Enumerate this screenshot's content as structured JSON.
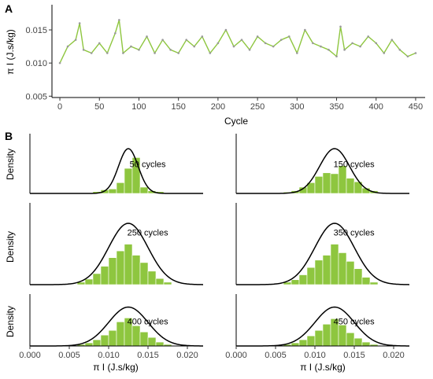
{
  "chart_data": [
    {
      "panel": "A",
      "type": "line",
      "xlabel": "Cycle",
      "ylabel": "π I (J.s/kg)",
      "xlim": [
        -10,
        462
      ],
      "ylim": [
        0.0048,
        0.0188
      ],
      "xticks": [
        0,
        50,
        100,
        150,
        200,
        250,
        300,
        350,
        400,
        450
      ],
      "yticks": [
        0.005,
        0.01,
        0.015
      ],
      "ytick_labels": [
        "0.005",
        "0.010",
        "0.015"
      ],
      "colors": {
        "line": "#8ec63f",
        "markers": "#9a9a9a"
      },
      "series": [
        {
          "x": [
            0,
            10,
            20,
            25,
            30,
            40,
            50,
            60,
            70,
            75,
            80,
            90,
            100,
            110,
            120,
            130,
            140,
            150,
            160,
            170,
            180,
            190,
            200,
            210,
            220,
            230,
            240,
            250,
            260,
            270,
            280,
            290,
            300,
            310,
            320,
            330,
            340,
            350,
            355,
            360,
            370,
            380,
            390,
            400,
            410,
            420,
            430,
            440,
            450
          ],
          "y": [
            0.01,
            0.0125,
            0.0135,
            0.016,
            0.012,
            0.0115,
            0.013,
            0.0115,
            0.0145,
            0.0165,
            0.0115,
            0.0125,
            0.012,
            0.014,
            0.0115,
            0.0135,
            0.012,
            0.0115,
            0.0135,
            0.0125,
            0.014,
            0.0115,
            0.013,
            0.015,
            0.0125,
            0.0135,
            0.012,
            0.014,
            0.013,
            0.0125,
            0.0135,
            0.014,
            0.0115,
            0.015,
            0.013,
            0.0125,
            0.012,
            0.011,
            0.0155,
            0.012,
            0.013,
            0.0125,
            0.014,
            0.013,
            0.0115,
            0.0135,
            0.012,
            0.011,
            0.0115
          ]
        }
      ]
    },
    {
      "panel": "B",
      "type": "bar",
      "ylabel": "Density",
      "xlabel": "π I (J.s/kg)",
      "xlim": [
        0,
        0.022
      ],
      "xticks": [
        0.0,
        0.005,
        0.01,
        0.015,
        0.02
      ],
      "xtick_labels": [
        "0.000",
        "0.005",
        "0.010",
        "0.015",
        "0.020"
      ],
      "bin_width": 0.001,
      "colors": {
        "bars": "#8ec63f",
        "bar_edge": "#ffffff",
        "curve": "#000000",
        "background_bars": "#cfcfcf"
      },
      "subplots": [
        {
          "label": "50 cycles",
          "normal_curve": {
            "mean": 0.0125,
            "sd": 0.00125
          },
          "bin_starts": [
            0.008,
            0.009,
            0.01,
            0.011,
            0.012,
            0.013,
            0.014,
            0.015,
            0.016
          ],
          "values": [
            0.04,
            0.08,
            0.1,
            0.24,
            0.56,
            0.8,
            0.14,
            0.06,
            0.04
          ]
        },
        {
          "label": "150 cycles",
          "normal_curve": {
            "mean": 0.0125,
            "sd": 0.0019
          },
          "bin_starts": [
            0.006,
            0.007,
            0.008,
            0.009,
            0.01,
            0.011,
            0.012,
            0.013,
            0.014,
            0.015,
            0.016,
            0.017
          ],
          "values": [
            0.03,
            0.06,
            0.14,
            0.24,
            0.38,
            0.46,
            0.44,
            0.62,
            0.34,
            0.26,
            0.12,
            0.06
          ]
        },
        {
          "label": "250 cycles",
          "normal_curve": {
            "mean": 0.0125,
            "sd": 0.0025
          },
          "bin_starts": [
            0.006,
            0.007,
            0.008,
            0.009,
            0.01,
            0.011,
            0.012,
            0.013,
            0.014,
            0.015,
            0.016,
            0.017
          ],
          "values": [
            0.04,
            0.09,
            0.18,
            0.3,
            0.44,
            0.55,
            0.66,
            0.48,
            0.36,
            0.22,
            0.1,
            0.04
          ]
        },
        {
          "label": "350 cycles",
          "normal_curve": {
            "mean": 0.0125,
            "sd": 0.0025
          },
          "bin_starts": [
            0.006,
            0.007,
            0.008,
            0.009,
            0.01,
            0.011,
            0.012,
            0.013,
            0.014,
            0.015,
            0.016,
            0.017
          ],
          "values": [
            0.04,
            0.08,
            0.16,
            0.28,
            0.4,
            0.48,
            0.66,
            0.52,
            0.38,
            0.26,
            0.12,
            0.04
          ]
        },
        {
          "label": "400 cycles",
          "normal_curve": {
            "mean": 0.0125,
            "sd": 0.0025
          },
          "bin_starts": [
            0.006,
            0.007,
            0.008,
            0.009,
            0.01,
            0.011,
            0.012,
            0.013,
            0.014,
            0.015,
            0.016,
            0.017
          ],
          "values": [
            0.04,
            0.08,
            0.16,
            0.28,
            0.4,
            0.62,
            0.72,
            0.52,
            0.36,
            0.22,
            0.1,
            0.04
          ]
        },
        {
          "label": "450 cycles",
          "normal_curve": {
            "mean": 0.0125,
            "sd": 0.0025
          },
          "bin_starts": [
            0.006,
            0.007,
            0.008,
            0.009,
            0.01,
            0.011,
            0.012,
            0.013,
            0.014,
            0.015,
            0.016,
            0.017
          ],
          "values": [
            0.04,
            0.08,
            0.16,
            0.26,
            0.4,
            0.56,
            0.7,
            0.54,
            0.34,
            0.2,
            0.1,
            0.04
          ]
        }
      ]
    }
  ]
}
